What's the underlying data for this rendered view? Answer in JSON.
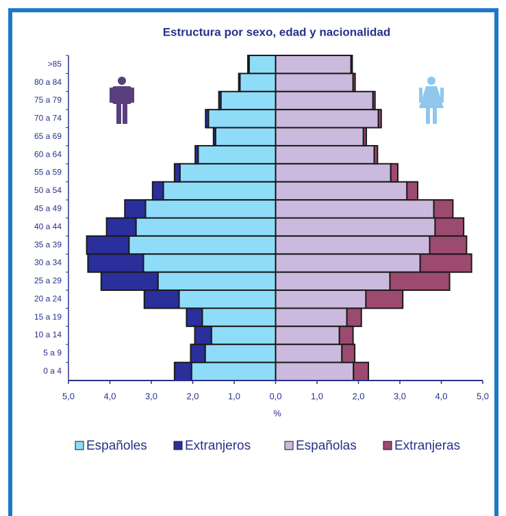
{
  "chart_data": {
    "type": "pyramid",
    "title": "Estructura por sexo, edad y nacionalidad",
    "xlabel": "%",
    "categories": [
      ">85",
      "80 a 84",
      "75 a 79",
      "70 a 74",
      "65 a 69",
      "60 a 64",
      "55 a 59",
      "50 a 54",
      "45 a 49",
      "40 a 44",
      "35 a 39",
      "30 a 34",
      "25 a 29",
      "20 a 24",
      "15 a 19",
      "10 a 14",
      "5 a 9",
      "0 a 4"
    ],
    "series": [
      {
        "name": "Españoles",
        "color": "#8fdcf8",
        "values": [
          -0.64,
          -0.86,
          -1.32,
          -1.62,
          -1.45,
          -1.87,
          -2.31,
          -2.71,
          -3.14,
          -3.37,
          -3.54,
          -3.19,
          -2.84,
          -2.33,
          -1.77,
          -1.55,
          -1.7,
          -2.03
        ]
      },
      {
        "name": "Extranjeros",
        "color": "#2b2f9c",
        "values": [
          -0.03,
          -0.03,
          -0.05,
          -0.07,
          -0.05,
          -0.07,
          -0.13,
          -0.26,
          -0.5,
          -0.71,
          -1.02,
          -1.34,
          -1.37,
          -0.84,
          -0.38,
          -0.4,
          -0.35,
          -0.41
        ]
      },
      {
        "name": "Españolas",
        "color": "#cbbadd",
        "values": [
          1.82,
          1.87,
          2.35,
          2.48,
          2.12,
          2.38,
          2.78,
          3.17,
          3.82,
          3.85,
          3.72,
          3.49,
          2.76,
          2.18,
          1.72,
          1.54,
          1.6,
          1.88
        ]
      },
      {
        "name": "Extranjeras",
        "color": "#9d4a70",
        "values": [
          0.03,
          0.05,
          0.05,
          0.07,
          0.07,
          0.08,
          0.17,
          0.26,
          0.46,
          0.69,
          0.89,
          1.24,
          1.44,
          0.89,
          0.35,
          0.33,
          0.31,
          0.36
        ]
      }
    ],
    "xlim": [
      -5,
      5
    ],
    "xticks": [
      {
        "value": -5,
        "label": "5,0"
      },
      {
        "value": -4,
        "label": "4,0"
      },
      {
        "value": -3,
        "label": "3,0"
      },
      {
        "value": -2,
        "label": "2,0"
      },
      {
        "value": -1,
        "label": "1,0"
      },
      {
        "value": 0,
        "label": "0,0"
      },
      {
        "value": 1,
        "label": "1,0"
      },
      {
        "value": 2,
        "label": "2,0"
      },
      {
        "value": 3,
        "label": "3,0"
      },
      {
        "value": 4,
        "label": "4,0"
      },
      {
        "value": 5,
        "label": "5,0"
      }
    ],
    "grid": false
  }
}
